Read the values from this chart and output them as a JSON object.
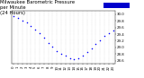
{
  "title": "Milwaukee Barometric Pressure\nper Minute\n(24 Hours)",
  "title_fontsize": 3.8,
  "bg_color": "#ffffff",
  "plot_bg": "#ffffff",
  "dot_color": "#0000ff",
  "dot_size": 1.2,
  "legend_color": "#0000cc",
  "hours": [
    0,
    1,
    2,
    3,
    4,
    5,
    6,
    7,
    8,
    9,
    10,
    11,
    12,
    13,
    14,
    15,
    16,
    17,
    18,
    19,
    20,
    21,
    22,
    23
  ],
  "pressure": [
    29.95,
    29.88,
    29.82,
    29.76,
    29.65,
    29.55,
    29.42,
    29.28,
    29.14,
    29.02,
    28.9,
    28.8,
    28.74,
    28.68,
    28.65,
    28.68,
    28.76,
    28.86,
    28.98,
    29.1,
    29.22,
    29.34,
    29.44,
    29.52
  ],
  "ylim": [
    28.5,
    30.1
  ],
  "xlim": [
    -0.5,
    23.5
  ],
  "ytick_labels": [
    "28.6",
    "28.8",
    "29.0",
    "29.2",
    "29.4",
    "29.6",
    "29.8",
    "30.0"
  ],
  "ytick_values": [
    28.6,
    28.8,
    29.0,
    29.2,
    29.4,
    29.6,
    29.8,
    30.0
  ],
  "xtick_values": [
    0,
    1,
    2,
    3,
    4,
    5,
    6,
    7,
    8,
    9,
    10,
    11,
    12,
    13,
    14,
    15,
    16,
    17,
    18,
    19,
    20,
    21,
    22,
    23
  ],
  "xtick_labels": [
    "0",
    "1",
    "2",
    "3",
    "4",
    "5",
    "6",
    "7",
    "8",
    "9",
    "10",
    "11",
    "12",
    "13",
    "14",
    "15",
    "16",
    "17",
    "18",
    "19",
    "20",
    "21",
    "22",
    "23"
  ],
  "tick_fontsize": 2.8,
  "grid_color": "#bbbbbb",
  "grid_style": ":"
}
